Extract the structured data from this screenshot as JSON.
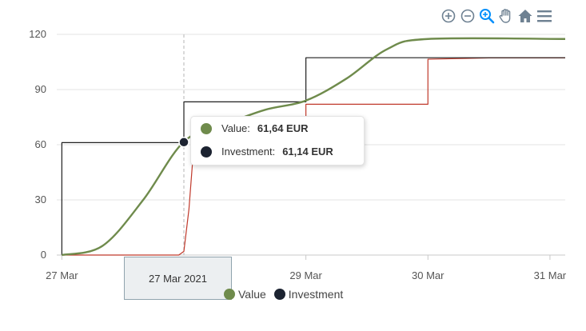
{
  "toolbar": {
    "icons": [
      "zoom-in-icon",
      "zoom-out-icon",
      "selection-zoom-icon",
      "pan-hand-icon",
      "home-reset-icon",
      "menu-icon"
    ],
    "active_color": "#008ffb",
    "icon_color": "#6e8192"
  },
  "tooltip": {
    "value_label": "Value:",
    "value_amount": "61,64 EUR",
    "investment_label": "Investment:",
    "investment_amount": "61,14 EUR"
  },
  "x_tooltip": "27 Mar 2021",
  "legend": {
    "value_label": "Value",
    "investment_label": "Investment"
  },
  "chart_data": {
    "type": "line",
    "title": "",
    "xlabel": "",
    "ylabel": "",
    "x_axis": {
      "type": "datetime",
      "range": [
        "2021-03-26T23:00",
        "2021-03-31T03:00"
      ],
      "ticks": [
        {
          "date": "2021-03-27T00:00",
          "label": "27 Mar"
        },
        {
          "date": "2021-03-29T00:00",
          "label": "29 Mar"
        },
        {
          "date": "2021-03-30T00:00",
          "label": "30 Mar"
        },
        {
          "date": "2021-03-31T00:00",
          "label": "31 Mar"
        }
      ]
    },
    "y_axis": {
      "range": [
        0,
        120
      ],
      "ticks": [
        0,
        30,
        60,
        90,
        120
      ]
    },
    "grid": "horizontal",
    "crosshair": "2021-03-28T00:00",
    "series": [
      {
        "name": "Value",
        "color": "#6f8b4c",
        "smooth": true,
        "points": [
          [
            "2021-03-27T00:00",
            0
          ],
          [
            "2021-03-27T08:00",
            5
          ],
          [
            "2021-03-27T16:00",
            30
          ],
          [
            "2021-03-28T00:00",
            61.64
          ],
          [
            "2021-03-28T08:00",
            71
          ],
          [
            "2021-03-28T16:00",
            79
          ],
          [
            "2021-03-29T00:00",
            84
          ],
          [
            "2021-03-29T08:00",
            96
          ],
          [
            "2021-03-29T16:00",
            112
          ],
          [
            "2021-03-30T00:00",
            117.5
          ],
          [
            "2021-03-31T03:00",
            117.5
          ]
        ]
      },
      {
        "name": "Investment",
        "color": "#1f1f1f",
        "step": true,
        "points": [
          [
            "2021-03-27T00:00",
            0
          ],
          [
            "2021-03-27T00:00",
            61.14
          ],
          [
            "2021-03-28T00:00",
            61.14
          ],
          [
            "2021-03-28T00:00",
            83.3
          ],
          [
            "2021-03-29T00:00",
            83.3
          ],
          [
            "2021-03-29T00:00",
            107.3
          ],
          [
            "2021-03-31T03:00",
            107.3
          ]
        ]
      },
      {
        "name": "",
        "color": "#c0392b",
        "points": [
          [
            "2021-03-27T00:00",
            0
          ],
          [
            "2021-03-27T23:00",
            0
          ],
          [
            "2021-03-28T00:00",
            2
          ],
          [
            "2021-03-28T01:00",
            25
          ],
          [
            "2021-03-28T02:00",
            61
          ],
          [
            "2021-03-28T03:00",
            62
          ],
          [
            "2021-03-29T00:00",
            62
          ],
          [
            "2021-03-29T00:00",
            82
          ],
          [
            "2021-03-30T00:00",
            82
          ],
          [
            "2021-03-30T00:00",
            106.5
          ],
          [
            "2021-03-30T12:00",
            107.2
          ],
          [
            "2021-03-31T03:00",
            107.2
          ]
        ]
      }
    ]
  }
}
